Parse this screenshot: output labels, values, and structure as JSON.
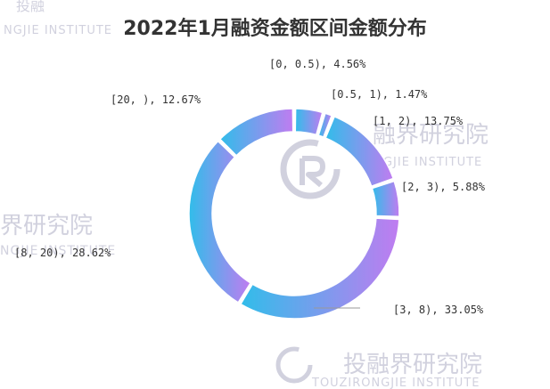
{
  "chart_data": {
    "type": "pie",
    "title": "2022年1月融资金额区间金额分布",
    "categories": [
      "[0, 0.5)",
      "[0.5, 1)",
      "[1, 2)",
      "[2, 3)",
      "[3, 8)",
      "[8, 20)",
      "[20, )"
    ],
    "values": [
      4.56,
      1.47,
      13.75,
      5.88,
      33.05,
      28.62,
      12.67
    ],
    "labels": [
      "[0, 0.5), 4.56%",
      "[0.5, 1), 1.47%",
      "[1, 2), 13.75%",
      "[2, 3), 5.88%",
      "[3, 8), 33.05%",
      "[8, 20), 28.62%",
      "[20, ), 12.67%"
    ],
    "style": "donut",
    "gradient": {
      "start": "#31bdea",
      "end": "#c07cf0"
    }
  },
  "watermark": {
    "brand": "投融界研究院",
    "brand_latin": "TOUZIRONGJIE INSTITUTE",
    "partial_latin": "NGJIE INSTITUTE",
    "partial_latin_2": "ONGJIE INSTITUTE",
    "partial_brand": "界研究院",
    "partial_brand_2": "融界研究院",
    "partial_brand_top": "投融"
  }
}
